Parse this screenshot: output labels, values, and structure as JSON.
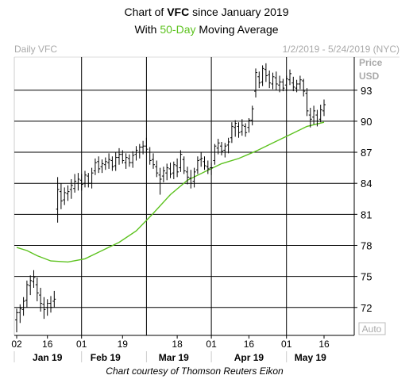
{
  "header": {
    "title_prefix": "Chart of ",
    "ticker": "VFC",
    "title_suffix": " since January 2019",
    "subtitle_prefix": "With ",
    "subtitle_highlight": "50-Day",
    "subtitle_suffix": " Moving Average"
  },
  "panel": {
    "label_left": "Daily VFC",
    "label_right": "1/2/2019 - 5/24/2019 (NYC)",
    "axis_unit_line1": "Price",
    "axis_unit_line2": "USD",
    "auto_label": "Auto"
  },
  "footer": {
    "credit": "Chart courtesy of Thomson Reuters Eikon"
  },
  "colors": {
    "price_bars": "#000000",
    "moving_average": "#5cc21e",
    "highlight_text": "#5cc21e",
    "grid": "#000000",
    "muted_text": "#aaaaaa"
  },
  "chart_data": {
    "type": "ohlc",
    "series": [
      {
        "name": "VFC",
        "kind": "ohlc"
      },
      {
        "name": "50-Day Moving Average",
        "kind": "line"
      }
    ],
    "y_ticks": [
      72,
      75,
      78,
      81,
      84,
      87,
      90,
      93
    ],
    "ylim": [
      69.3,
      96.2
    ],
    "x_tick_labels": [
      "02",
      "16",
      "01",
      "19",
      "18",
      "01",
      "16",
      "01",
      "16"
    ],
    "x_tick_index": [
      0,
      9,
      19,
      31,
      47,
      57,
      68,
      79,
      90
    ],
    "month_labels": [
      {
        "label": "Jan 19",
        "index": 9
      },
      {
        "label": "Feb 19",
        "index": 26
      },
      {
        "label": "Mar 19",
        "index": 46
      },
      {
        "label": "Apr 19",
        "index": 68
      },
      {
        "label": "May 19",
        "index": 86
      }
    ],
    "month_separator_index": [
      19,
      38,
      57,
      79
    ],
    "ohlc": [
      [
        70.8,
        71.9,
        69.6,
        71.5
      ],
      [
        71.5,
        72.3,
        70.5,
        71.9
      ],
      [
        71.8,
        73.0,
        71.2,
        72.6
      ],
      [
        72.7,
        74.6,
        72.0,
        74.2
      ],
      [
        74.1,
        75.1,
        73.2,
        74.6
      ],
      [
        74.5,
        75.6,
        73.9,
        74.9
      ],
      [
        74.2,
        74.9,
        72.6,
        73.4
      ],
      [
        73.2,
        73.9,
        71.6,
        72.4
      ],
      [
        72.3,
        73.0,
        70.9,
        71.8
      ],
      [
        72.0,
        72.8,
        71.2,
        72.4
      ],
      [
        72.4,
        73.1,
        71.5,
        72.0
      ],
      [
        72.6,
        73.6,
        72.0,
        72.8
      ],
      [
        81.5,
        84.6,
        80.2,
        83.4
      ],
      [
        83.2,
        84.0,
        81.5,
        82.3
      ],
      [
        82.4,
        83.6,
        81.9,
        83.1
      ],
      [
        83.0,
        83.8,
        82.3,
        83.2
      ],
      [
        83.4,
        84.4,
        82.5,
        83.8
      ],
      [
        83.5,
        84.9,
        83.1,
        84.2
      ],
      [
        84.0,
        85.0,
        83.3,
        84.4
      ],
      [
        84.3,
        84.9,
        83.3,
        83.9
      ],
      [
        84.0,
        85.2,
        83.6,
        84.8
      ],
      [
        84.7,
        85.0,
        83.6,
        84.0
      ],
      [
        84.0,
        85.5,
        83.5,
        85.0
      ],
      [
        85.2,
        86.4,
        84.8,
        86.0
      ],
      [
        86.1,
        86.6,
        85.0,
        85.4
      ],
      [
        85.6,
        86.3,
        85.0,
        85.9
      ],
      [
        85.8,
        86.5,
        85.3,
        86.1
      ],
      [
        86.0,
        86.9,
        85.4,
        86.3
      ],
      [
        86.2,
        86.6,
        85.2,
        85.6
      ],
      [
        85.7,
        87.0,
        85.2,
        86.5
      ],
      [
        86.5,
        87.4,
        85.8,
        86.8
      ],
      [
        86.8,
        87.2,
        85.9,
        86.2
      ],
      [
        86.0,
        86.9,
        85.4,
        86.5
      ],
      [
        86.4,
        86.8,
        85.6,
        86.0
      ],
      [
        86.0,
        87.1,
        85.5,
        86.7
      ],
      [
        86.8,
        87.6,
        86.2,
        87.2
      ],
      [
        87.0,
        87.8,
        86.4,
        87.5
      ],
      [
        87.5,
        88.1,
        86.8,
        87.6
      ],
      [
        87.6,
        88.4,
        86.9,
        87.3
      ],
      [
        87.0,
        87.5,
        85.8,
        86.2
      ],
      [
        86.3,
        86.9,
        85.4,
        85.8
      ],
      [
        85.6,
        86.2,
        84.6,
        85.0
      ],
      [
        84.8,
        85.5,
        82.9,
        84.4
      ],
      [
        84.7,
        85.6,
        84.1,
        85.2
      ],
      [
        85.0,
        85.9,
        84.3,
        85.5
      ],
      [
        85.4,
        86.0,
        84.5,
        84.9
      ],
      [
        85.0,
        86.1,
        84.4,
        85.8
      ],
      [
        85.7,
        86.4,
        84.6,
        85.1
      ],
      [
        85.5,
        87.2,
        85.1,
        86.8
      ],
      [
        86.3,
        86.6,
        84.9,
        85.2
      ],
      [
        85.1,
        85.6,
        83.9,
        84.6
      ],
      [
        84.5,
        85.3,
        83.5,
        84.0
      ],
      [
        84.2,
        85.5,
        83.6,
        85.1
      ],
      [
        85.3,
        86.6,
        84.9,
        86.2
      ],
      [
        86.3,
        87.0,
        85.6,
        86.4
      ],
      [
        86.1,
        86.6,
        85.3,
        85.7
      ],
      [
        85.6,
        86.2,
        84.9,
        85.4
      ],
      [
        85.5,
        86.0,
        84.8,
        85.5
      ],
      [
        86.2,
        87.8,
        85.8,
        87.6
      ],
      [
        87.4,
        88.3,
        86.8,
        87.9
      ],
      [
        87.6,
        88.0,
        86.7,
        87.1
      ],
      [
        87.2,
        87.9,
        86.5,
        87.6
      ],
      [
        87.7,
        88.4,
        86.9,
        88.0
      ],
      [
        88.4,
        89.9,
        87.9,
        89.5
      ],
      [
        89.4,
        90.1,
        88.5,
        89.8
      ],
      [
        89.5,
        89.9,
        88.4,
        88.9
      ],
      [
        89.0,
        90.2,
        88.6,
        89.6
      ],
      [
        89.5,
        89.8,
        88.5,
        88.9
      ],
      [
        89.4,
        90.3,
        88.9,
        90.1
      ],
      [
        90.1,
        91.5,
        89.6,
        91.2
      ],
      [
        92.9,
        95.1,
        92.3,
        94.7
      ],
      [
        94.3,
        94.8,
        93.2,
        93.7
      ],
      [
        93.8,
        95.4,
        93.4,
        95.1
      ],
      [
        95.0,
        95.6,
        93.8,
        94.4
      ],
      [
        94.5,
        94.9,
        93.2,
        93.7
      ],
      [
        93.6,
        94.7,
        93.1,
        94.3
      ],
      [
        94.2,
        94.8,
        93.0,
        93.6
      ],
      [
        93.5,
        94.4,
        92.8,
        93.8
      ],
      [
        93.8,
        94.1,
        92.9,
        93.2
      ],
      [
        93.5,
        94.4,
        92.9,
        94.1
      ],
      [
        94.0,
        95.0,
        93.5,
        94.6
      ],
      [
        93.7,
        94.3,
        92.9,
        93.3
      ],
      [
        93.2,
        94.0,
        92.8,
        93.6
      ],
      [
        93.6,
        94.4,
        93.1,
        94.0
      ],
      [
        93.9,
        94.1,
        92.4,
        92.9
      ],
      [
        92.7,
        93.2,
        90.5,
        91.0
      ],
      [
        90.6,
        91.3,
        89.4,
        90.2
      ],
      [
        90.4,
        91.5,
        89.7,
        91.0
      ],
      [
        90.6,
        91.1,
        89.5,
        90.0
      ],
      [
        90.2,
        91.6,
        89.9,
        91.1
      ],
      [
        91.0,
        92.1,
        90.5,
        91.6
      ]
    ],
    "ma_x_index": [
      0,
      3,
      6,
      10,
      15,
      20,
      25,
      30,
      35,
      40,
      45,
      50,
      55,
      60,
      65,
      70,
      75,
      80,
      85,
      90
    ],
    "ma_values": [
      77.8,
      77.5,
      77.0,
      76.5,
      76.4,
      76.7,
      77.5,
      78.3,
      79.4,
      81.1,
      82.9,
      84.3,
      85.1,
      85.9,
      86.4,
      87.1,
      87.9,
      88.7,
      89.5,
      89.9
    ]
  }
}
